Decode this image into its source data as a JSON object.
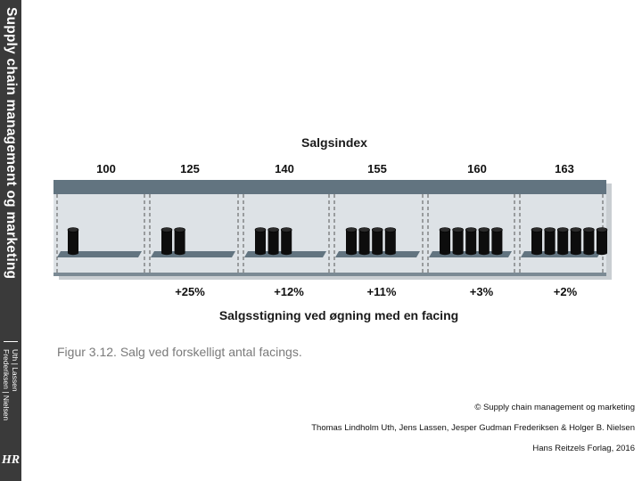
{
  "sidebar": {
    "title_bold": "Supply chain management og marketing",
    "authors_line1": "Uth | Lassen",
    "authors_line2": "Frederiksen | Nielsen",
    "logo": "HR"
  },
  "diagram": {
    "title": "Salgsindex",
    "subtitle": "Salgsstigning ved øgning med en facing",
    "index_values": [
      "100",
      "125",
      "140",
      "155",
      "160",
      "163"
    ],
    "increase_values": [
      "+25%",
      "+12%",
      "+11%",
      "+3%",
      "+2%"
    ],
    "facings": [
      1,
      2,
      3,
      4,
      5,
      6
    ],
    "colors": {
      "shelf_top": "#627480",
      "shelf_bg": "#dde2e6",
      "shelf_edge": "#7b8a94",
      "can": "#0d0d0d"
    }
  },
  "caption": "Figur 3.12. Salg ved forskelligt antal facings.",
  "footer": {
    "copyright": "© Supply chain management og marketing",
    "authors": "Thomas Lindholm Uth, Jens Lassen, Jesper Gudman Frederiksen & Holger B. Nielsen",
    "publisher": "Hans Reitzels Forlag, 2016"
  }
}
